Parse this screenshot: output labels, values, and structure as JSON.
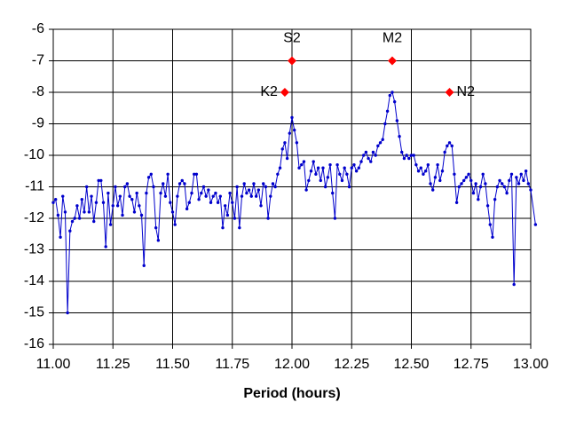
{
  "chart_data": {
    "type": "line",
    "x_label": "Period (hours)",
    "xlim": [
      11,
      13
    ],
    "xticks": [
      {
        "value": 11,
        "label": "11.00"
      },
      {
        "value": 11.25,
        "label": "11.25"
      },
      {
        "value": 11.5,
        "label": "11.50"
      },
      {
        "value": 11.75,
        "label": "11.75"
      },
      {
        "value": 12,
        "label": "12.00"
      },
      {
        "value": 12.25,
        "label": "12.25"
      },
      {
        "value": 12.5,
        "label": "12.50"
      },
      {
        "value": 12.75,
        "label": "12.75"
      },
      {
        "value": 13,
        "label": "13.00"
      }
    ],
    "ylim": [
      -16,
      -6
    ],
    "yticks": [
      -16,
      -15,
      -14,
      -13,
      -12,
      -11,
      -10,
      -9,
      -8,
      -7,
      -6
    ],
    "grid": true,
    "series": [
      {
        "type": "line",
        "color": "#0000cc",
        "marker": "circle",
        "x": [
          11.0,
          11.01,
          11.02,
          11.03,
          11.04,
          11.05,
          11.06,
          11.07,
          11.08,
          11.09,
          11.1,
          11.11,
          11.12,
          11.13,
          11.14,
          11.15,
          11.16,
          11.17,
          11.18,
          11.19,
          11.2,
          11.21,
          11.22,
          11.23,
          11.24,
          11.25,
          11.26,
          11.27,
          11.28,
          11.29,
          11.3,
          11.31,
          11.32,
          11.33,
          11.34,
          11.35,
          11.36,
          11.37,
          11.38,
          11.39,
          11.4,
          11.41,
          11.42,
          11.43,
          11.44,
          11.45,
          11.46,
          11.47,
          11.48,
          11.49,
          11.5,
          11.51,
          11.52,
          11.53,
          11.54,
          11.55,
          11.56,
          11.57,
          11.58,
          11.59,
          11.6,
          11.61,
          11.62,
          11.63,
          11.64,
          11.65,
          11.66,
          11.67,
          11.68,
          11.69,
          11.7,
          11.71,
          11.72,
          11.73,
          11.74,
          11.75,
          11.76,
          11.77,
          11.78,
          11.79,
          11.8,
          11.81,
          11.82,
          11.83,
          11.84,
          11.85,
          11.86,
          11.87,
          11.88,
          11.89,
          11.9,
          11.91,
          11.92,
          11.93,
          11.94,
          11.95,
          11.96,
          11.97,
          11.98,
          11.99,
          12.0,
          12.01,
          12.02,
          12.03,
          12.04,
          12.05,
          12.06,
          12.07,
          12.08,
          12.09,
          12.1,
          12.11,
          12.12,
          12.13,
          12.14,
          12.15,
          12.16,
          12.17,
          12.18,
          12.19,
          12.2,
          12.21,
          12.22,
          12.23,
          12.24,
          12.25,
          12.26,
          12.27,
          12.28,
          12.29,
          12.3,
          12.31,
          12.32,
          12.33,
          12.34,
          12.35,
          12.36,
          12.37,
          12.38,
          12.39,
          12.4,
          12.41,
          12.42,
          12.43,
          12.44,
          12.45,
          12.46,
          12.47,
          12.48,
          12.49,
          12.5,
          12.51,
          12.52,
          12.53,
          12.54,
          12.55,
          12.56,
          12.57,
          12.58,
          12.59,
          12.6,
          12.61,
          12.62,
          12.63,
          12.64,
          12.65,
          12.66,
          12.67,
          12.68,
          12.69,
          12.7,
          12.71,
          12.72,
          12.73,
          12.74,
          12.75,
          12.76,
          12.77,
          12.78,
          12.79,
          12.8,
          12.81,
          12.82,
          12.83,
          12.84,
          12.85,
          12.86,
          12.87,
          12.88,
          12.89,
          12.9,
          12.91,
          12.92,
          12.93,
          12.94,
          12.95,
          12.96,
          12.97,
          12.98,
          12.99,
          13.0,
          13.02
        ],
        "values": [
          -11.5,
          -11.4,
          -11.9,
          -12.6,
          -11.3,
          -11.8,
          -15.0,
          -12.4,
          -12.1,
          -12.0,
          -11.6,
          -12.0,
          -11.4,
          -11.8,
          -11.0,
          -11.8,
          -11.3,
          -12.1,
          -11.5,
          -10.8,
          -10.8,
          -11.5,
          -12.9,
          -11.2,
          -12.2,
          -11.6,
          -11.0,
          -11.6,
          -11.3,
          -11.9,
          -11.0,
          -10.9,
          -11.3,
          -11.4,
          -11.8,
          -11.2,
          -11.6,
          -11.9,
          -13.5,
          -11.2,
          -10.7,
          -10.6,
          -11.0,
          -12.3,
          -12.7,
          -11.2,
          -10.9,
          -11.3,
          -10.6,
          -11.5,
          -11.8,
          -12.2,
          -11.3,
          -10.9,
          -10.8,
          -10.9,
          -11.7,
          -11.5,
          -11.2,
          -10.6,
          -10.6,
          -11.4,
          -11.2,
          -11.0,
          -11.3,
          -11.1,
          -11.5,
          -11.3,
          -11.2,
          -11.5,
          -11.3,
          -12.3,
          -11.6,
          -11.9,
          -11.2,
          -11.5,
          -12.0,
          -11.0,
          -12.3,
          -11.3,
          -10.9,
          -11.2,
          -11.1,
          -11.3,
          -10.9,
          -11.3,
          -11.1,
          -11.6,
          -10.9,
          -11.0,
          -12.0,
          -11.3,
          -10.9,
          -11.0,
          -10.6,
          -10.4,
          -9.8,
          -9.6,
          -10.1,
          -9.3,
          -8.8,
          -9.2,
          -9.6,
          -10.4,
          -10.3,
          -10.2,
          -11.1,
          -10.8,
          -10.5,
          -10.2,
          -10.6,
          -10.4,
          -10.8,
          -10.4,
          -11.0,
          -10.7,
          -10.3,
          -11.2,
          -12.0,
          -10.3,
          -10.6,
          -10.8,
          -10.4,
          -10.6,
          -11.0,
          -10.4,
          -10.3,
          -10.5,
          -10.4,
          -10.2,
          -10.0,
          -9.9,
          -10.1,
          -10.2,
          -9.9,
          -10.0,
          -9.7,
          -9.6,
          -9.5,
          -9.0,
          -8.6,
          -8.1,
          -8.0,
          -8.3,
          -8.9,
          -9.4,
          -9.9,
          -10.1,
          -10.0,
          -10.1,
          -10.0,
          -10.0,
          -10.3,
          -10.5,
          -10.4,
          -10.6,
          -10.5,
          -10.3,
          -10.9,
          -11.1,
          -10.7,
          -10.3,
          -10.8,
          -10.5,
          -9.9,
          -9.7,
          -9.6,
          -9.7,
          -10.6,
          -11.5,
          -11.0,
          -10.9,
          -10.8,
          -10.7,
          -10.6,
          -10.8,
          -11.2,
          -10.9,
          -11.4,
          -11.0,
          -10.6,
          -10.9,
          -11.6,
          -12.2,
          -12.6,
          -11.4,
          -11.0,
          -10.8,
          -10.9,
          -11.0,
          -11.2,
          -10.8,
          -10.6,
          -14.1,
          -10.7,
          -10.9,
          -10.6,
          -10.8,
          -10.5,
          -10.9,
          -11.1,
          -12.2
        ]
      },
      {
        "type": "scatter",
        "color": "#ff0000",
        "marker": "diamond",
        "x": [
          11.97,
          12.0,
          12.42,
          12.66
        ],
        "values": [
          -8,
          -7,
          -7,
          -8
        ],
        "labels": [
          "K2",
          "S2",
          "M2",
          "N2"
        ],
        "label_positions": [
          "left",
          "above",
          "above",
          "right"
        ]
      }
    ]
  }
}
